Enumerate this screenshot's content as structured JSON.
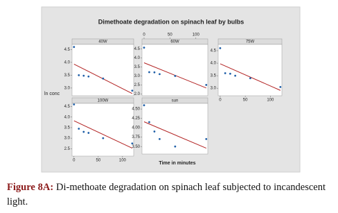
{
  "figure": {
    "title": "Dimethoate degradation on spinach leaf by bulbs",
    "ylabel": "ln conc",
    "xlabel": "Time in minutes"
  },
  "caption": {
    "label": "Figure 8A:",
    "text": "Di-methoate degradation on spinach leaf subjected to incandescent light."
  },
  "chart_data": [
    {
      "type": "scatter",
      "title": "40W",
      "x": [
        0,
        10,
        20,
        30,
        60,
        120
      ],
      "values": [
        4.6,
        3.5,
        3.48,
        3.45,
        3.37,
        2.9
      ],
      "color": "#1f5fa8",
      "trendline": true,
      "trendline_color": "#b22222",
      "xlim": [
        -4,
        123
      ],
      "ylim": [
        2.7,
        4.7
      ],
      "yticks": [
        {
          "value": 3,
          "label": "3.0"
        },
        3.5,
        {
          "value": 4,
          "label": "4.0"
        },
        4.5
      ]
    },
    {
      "type": "scatter",
      "title": "60W",
      "x": [
        0,
        10,
        20,
        30,
        60,
        120
      ],
      "values": [
        4.57,
        3.21,
        3.2,
        3.1,
        3.0,
        2.5
      ],
      "color": "#1f5fa8",
      "trendline": true,
      "trendline_color": "#b22222",
      "xlim": [
        -4,
        123
      ],
      "ylim": [
        1.9,
        4.75
      ],
      "xticks": [
        0,
        50,
        100
      ],
      "xticks_side": "top",
      "yticks": [
        {
          "value": 2,
          "label": "2.0"
        },
        2.5,
        {
          "value": 3,
          "label": "3.0"
        },
        3.5,
        {
          "value": 4,
          "label": "4.0"
        },
        4.5
      ]
    },
    {
      "type": "scatter",
      "title": "75W",
      "x": [
        0,
        10,
        20,
        30,
        60,
        120
      ],
      "values": [
        4.6,
        3.6,
        3.58,
        3.5,
        3.4,
        3.05
      ],
      "color": "#1f5fa8",
      "trendline": true,
      "trendline_color": "#b22222",
      "xlim": [
        -4,
        123
      ],
      "ylim": [
        2.7,
        4.75
      ],
      "xticks": [
        0,
        50,
        100
      ],
      "xticks_side": "bottom",
      "yticks": [
        {
          "value": 3,
          "label": "3.0"
        },
        3.5,
        {
          "value": 4,
          "label": "4.0"
        },
        4.5
      ]
    },
    {
      "type": "scatter",
      "title": "100W",
      "x": [
        0,
        10,
        20,
        30,
        60,
        120
      ],
      "values": [
        4.6,
        3.45,
        3.3,
        3.25,
        3.0,
        2.75
      ],
      "color": "#1f5fa8",
      "trendline": true,
      "trendline_color": "#b22222",
      "xlim": [
        -4,
        123
      ],
      "ylim": [
        2.15,
        4.65
      ],
      "xticks": [
        0,
        50,
        100
      ],
      "xticks_side": "bottom",
      "yticks": [
        2.5,
        {
          "value": 3,
          "label": "3.0"
        },
        3.5,
        {
          "value": 4,
          "label": "4.0"
        },
        4.5
      ]
    },
    {
      "type": "scatter",
      "title": "sun",
      "x": [
        0,
        10,
        20,
        30,
        60,
        120
      ],
      "values": [
        4.6,
        4.15,
        3.9,
        3.7,
        3.5,
        3.7
      ],
      "color": "#1f5fa8",
      "trendline": true,
      "trendline_color": "#b22222",
      "xlim": [
        -4,
        123
      ],
      "ylim": [
        3.3,
        4.65
      ],
      "yticks": [
        {
          "value": 3.5,
          "label": "3.50"
        },
        {
          "value": 3.75,
          "label": "3.75"
        },
        {
          "value": 4,
          "label": "4.00"
        },
        {
          "value": 4.25,
          "label": "4.25"
        },
        {
          "value": 4.5,
          "label": "4.50"
        }
      ]
    }
  ]
}
